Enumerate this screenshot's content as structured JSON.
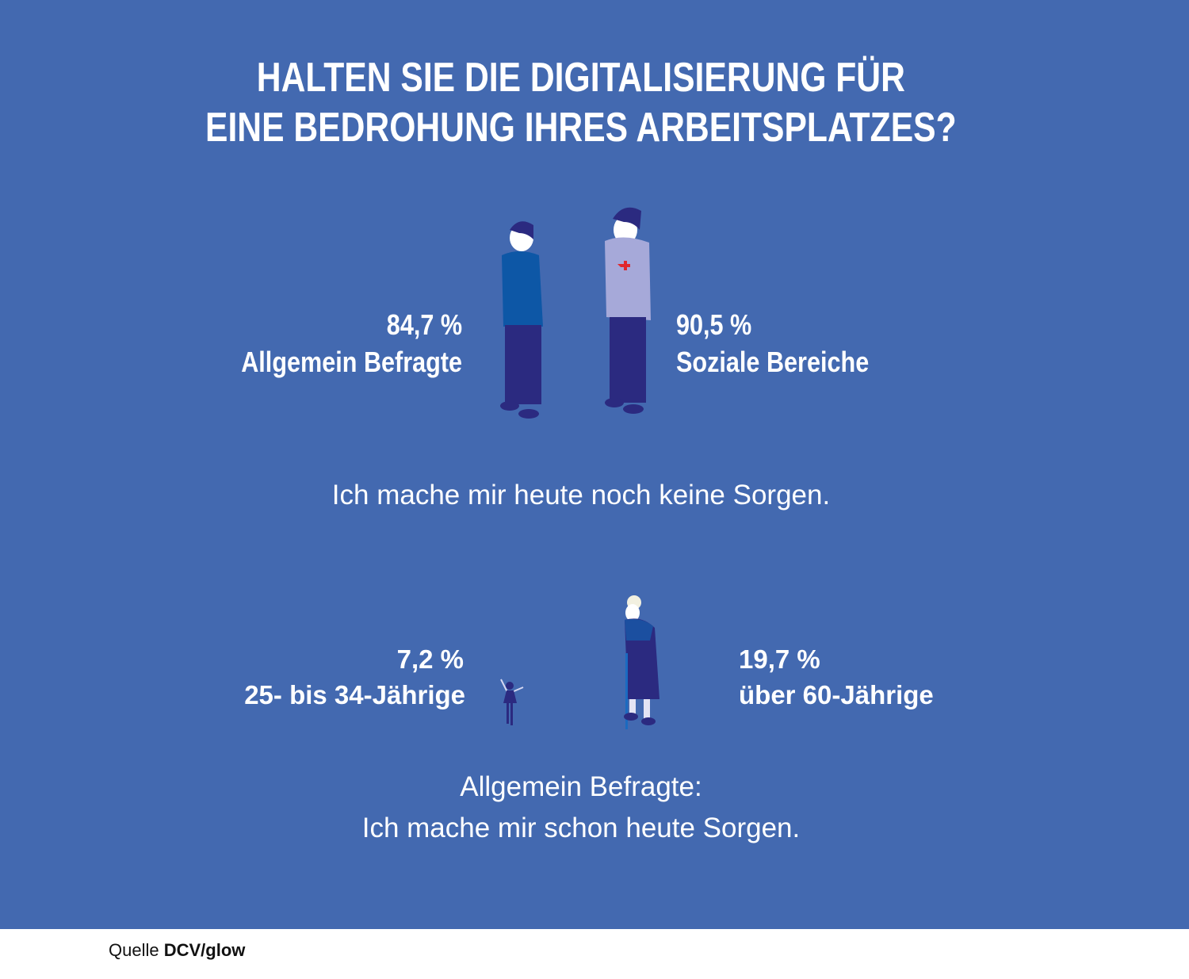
{
  "title": {
    "line1": "HALTEN SIE DIE DIGITALISIERUNG FÜR",
    "line2": "EINE BEDROHUNG IHRES ARBEITSPLATZES?"
  },
  "top": {
    "left": {
      "value": "84,7 %",
      "label": "Allgemein Befragte",
      "icon": "man-blue-sweater"
    },
    "right": {
      "value": "90,5 %",
      "label": "Soziale Bereiche",
      "icon": "man-grey-sweater-red-cross"
    },
    "caption": "Ich mache mir heute noch keine Sorgen."
  },
  "bottom": {
    "left": {
      "value": "7,2 %",
      "label": "25- bis 34-Jährige",
      "icon": "small-girl"
    },
    "right": {
      "value": "19,7 %",
      "label": "über 60-Jährige",
      "icon": "old-woman-with-cane"
    },
    "caption1": "Allgemein Befragte:",
    "caption2": "Ich mache mir schon heute Sorgen."
  },
  "source": {
    "prefix": "Quelle",
    "name": "DCV/glow"
  },
  "colors": {
    "background": "#4369b0",
    "text": "#ffffff",
    "figure_dark": "#2b2a80",
    "accent_red": "#e0282e"
  }
}
